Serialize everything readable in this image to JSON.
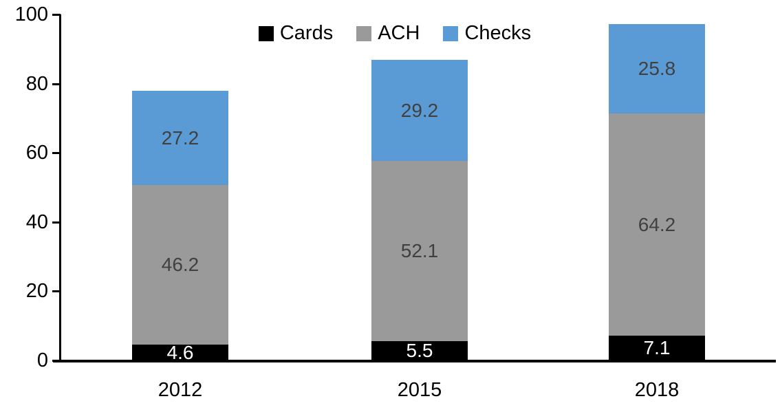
{
  "chart_data": {
    "type": "bar",
    "stacked": true,
    "title": "",
    "xlabel": "",
    "ylabel": "",
    "categories": [
      "2012",
      "2015",
      "2018"
    ],
    "series": [
      {
        "name": "Cards",
        "color": "#000000",
        "label_color": "#ffffff",
        "values": [
          4.6,
          5.5,
          7.1
        ]
      },
      {
        "name": "ACH",
        "color": "#9A9A9A",
        "label_color": "#404040",
        "values": [
          46.2,
          52.1,
          64.2
        ]
      },
      {
        "name": "Checks",
        "color": "#5B9BD5",
        "label_color": "#404040",
        "values": [
          27.2,
          29.2,
          25.8
        ]
      }
    ],
    "yticks": [
      0,
      20,
      40,
      60,
      80,
      100
    ],
    "ylim": [
      0,
      100
    ],
    "grid": false,
    "legend_position": "top-center",
    "axis_color": "#000000",
    "background": "#ffffff"
  }
}
